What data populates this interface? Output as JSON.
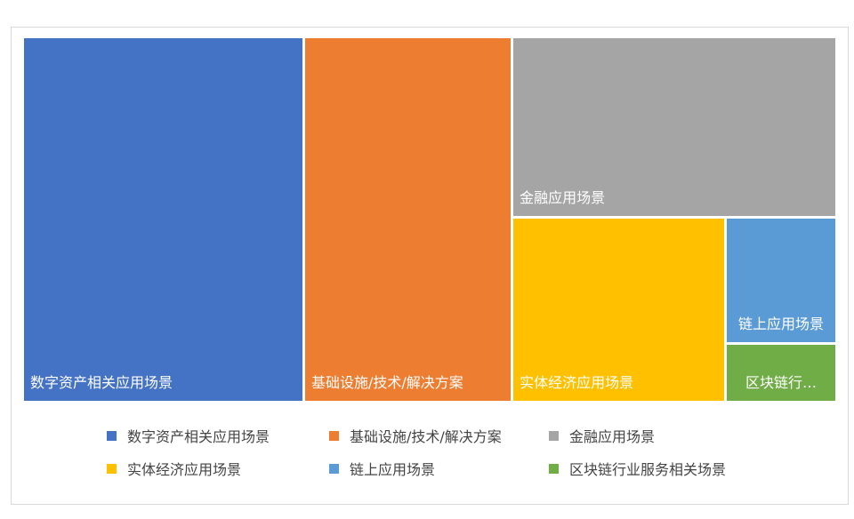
{
  "chart_data": {
    "type": "treemap",
    "categories": [
      "数字资产相关应用场景",
      "基础设施/技术/解决方案",
      "金融应用场景",
      "实体经济应用场景",
      "链上应用场景",
      "区块链行业服务相关场景"
    ],
    "values": [
      132000,
      97800,
      75400,
      50600,
      18000,
      8400
    ],
    "tile_labels": [
      "数字资产相关应用场景",
      "基础设施/技术/解决方案",
      "金融应用场景",
      "实体经济应用场景",
      "链上应用场景",
      "区块链行…"
    ],
    "colors": [
      "#4472c4",
      "#ed7d31",
      "#a5a5a5",
      "#ffc000",
      "#5b9bd5",
      "#70ad47"
    ],
    "legend_position": "bottom"
  }
}
